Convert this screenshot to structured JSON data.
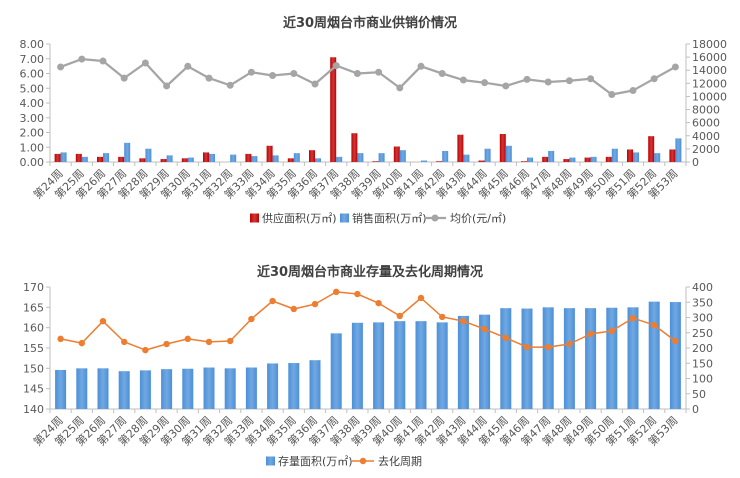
{
  "chart_data": [
    {
      "type": "bar",
      "title": "近30周烟台市商业供销价情况",
      "categories": [
        "第24周",
        "第25周",
        "第26周",
        "第27周",
        "第28周",
        "第29周",
        "第30周",
        "第31周",
        "第32周",
        "第33周",
        "第34周",
        "第35周",
        "第36周",
        "第37周",
        "第38周",
        "第39周",
        "第40周",
        "第41周",
        "第42周",
        "第43周",
        "第44周",
        "第45周",
        "第46周",
        "第47周",
        "第48周",
        "第49周",
        "第50周",
        "第51周",
        "第52周",
        "第53周"
      ],
      "series": [
        {
          "name": "供应面积(万㎡)",
          "type": "bar",
          "axis": "left",
          "color": "#C00000",
          "values": [
            0.55,
            0.55,
            0.35,
            0.35,
            0.25,
            0.2,
            0.25,
            0.65,
            0.0,
            0.55,
            1.1,
            0.25,
            0.8,
            7.1,
            1.95,
            0.05,
            1.05,
            0.0,
            0.05,
            1.85,
            0.1,
            1.9,
            0.05,
            0.35,
            0.2,
            0.3,
            0.35,
            0.85,
            1.75,
            0.85
          ]
        },
        {
          "name": "销售面积(万㎡)",
          "type": "bar",
          "axis": "left",
          "color": "#4A90D9",
          "values": [
            0.65,
            0.35,
            0.6,
            1.3,
            0.9,
            0.45,
            0.3,
            0.55,
            0.5,
            0.4,
            0.45,
            0.6,
            0.25,
            0.35,
            0.6,
            0.6,
            0.8,
            0.1,
            0.75,
            0.5,
            0.9,
            1.1,
            0.3,
            0.75,
            0.3,
            0.35,
            0.9,
            0.65,
            0.6,
            1.6
          ]
        },
        {
          "name": "均价(元/㎡)",
          "type": "line",
          "axis": "right",
          "color": "#A5A5A5",
          "values": [
            14500,
            15700,
            15400,
            12800,
            15100,
            11600,
            14600,
            12800,
            11700,
            13700,
            13200,
            13500,
            11900,
            14700,
            13500,
            13700,
            11300,
            14600,
            13500,
            12500,
            12100,
            11600,
            12600,
            12200,
            12400,
            12700,
            10300,
            10900,
            12700,
            14500
          ]
        }
      ],
      "ylim": [
        0,
        8
      ],
      "y_ticks": [
        "0.00",
        "1.00",
        "2.00",
        "3.00",
        "4.00",
        "5.00",
        "6.00",
        "7.00",
        "8.00"
      ],
      "y2lim": [
        0,
        18000
      ],
      "y2_ticks": [
        "0",
        "2000",
        "4000",
        "6000",
        "8000",
        "10000",
        "12000",
        "14000",
        "16000",
        "18000"
      ],
      "grid": false,
      "legend": "bottom"
    },
    {
      "type": "bar",
      "title": "近30周烟台市商业存量及去化周期情况",
      "categories": [
        "第24周",
        "第25周",
        "第26周",
        "第27周",
        "第28周",
        "第29周",
        "第30周",
        "第31周",
        "第32周",
        "第33周",
        "第34周",
        "第35周",
        "第36周",
        "第37周",
        "第38周",
        "第39周",
        "第40周",
        "第41周",
        "第42周",
        "第43周",
        "第44周",
        "第45周",
        "第46周",
        "第47周",
        "第48周",
        "第49周",
        "第50周",
        "第51周",
        "第52周",
        "第53周"
      ],
      "series": [
        {
          "name": "存量面积(万㎡)",
          "type": "bar",
          "axis": "left",
          "color": "#4A90D9",
          "values": [
            149.6,
            150.0,
            150.0,
            149.3,
            149.5,
            149.8,
            149.9,
            150.2,
            150.0,
            150.2,
            151.2,
            151.3,
            152.0,
            158.6,
            161.2,
            161.3,
            161.6,
            161.6,
            161.3,
            162.9,
            163.2,
            164.8,
            164.7,
            165.0,
            164.8,
            164.8,
            164.9,
            165.0,
            166.4,
            166.3
          ]
        },
        {
          "name": "去化周期",
          "type": "line",
          "axis": "right",
          "color": "#ED7D31",
          "values": [
            230,
            216,
            288,
            220,
            193,
            213,
            230,
            220,
            223,
            295,
            354,
            328,
            344,
            384,
            377,
            347,
            305,
            364,
            302,
            288,
            262,
            233,
            203,
            203,
            213,
            246,
            256,
            298,
            275,
            223
          ]
        }
      ],
      "ylim": [
        140,
        170
      ],
      "y_ticks": [
        "140",
        "145",
        "150",
        "155",
        "160",
        "165",
        "170"
      ],
      "y2lim": [
        0,
        400
      ],
      "y2_ticks": [
        "0",
        "50",
        "100",
        "150",
        "200",
        "250",
        "300",
        "350",
        "400"
      ],
      "grid": false,
      "legend": "bottom"
    }
  ]
}
